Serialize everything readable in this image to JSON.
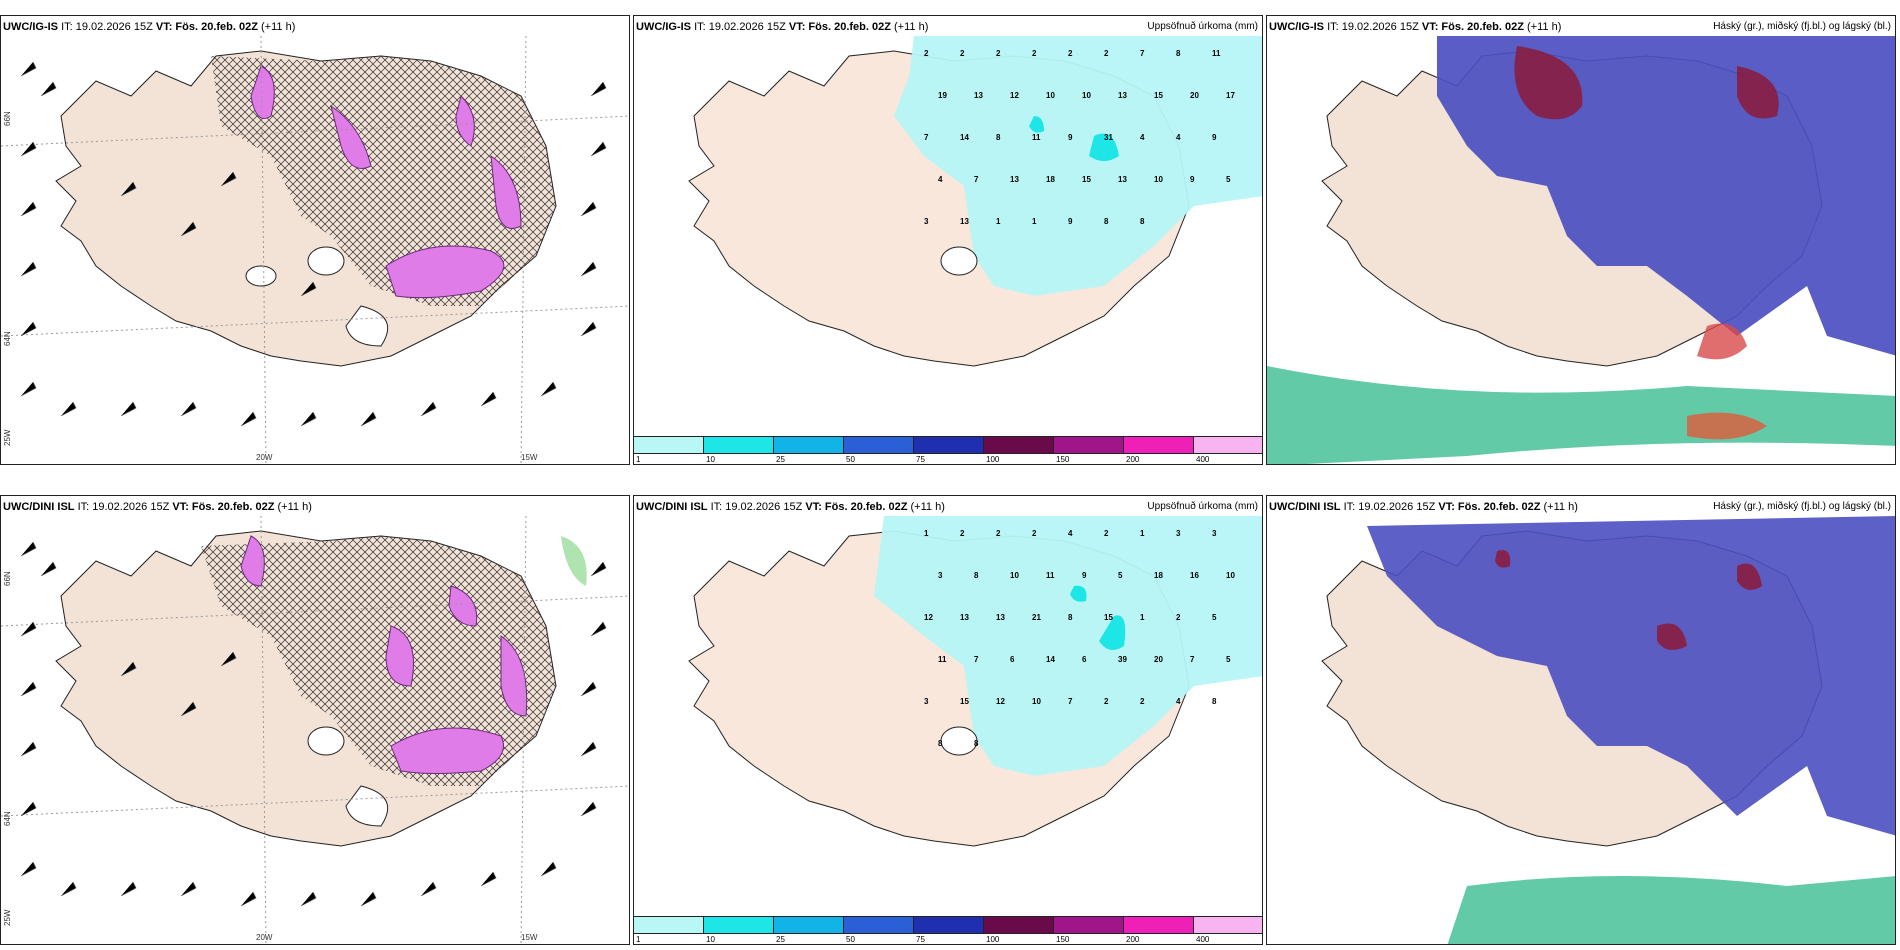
{
  "panels": [
    {
      "model": "UWC/IG-IS",
      "it": "IT: 19.02.2026 15Z",
      "vt": "VT: Fös. 20.feb. 02Z",
      "lead": "(+11 h)",
      "title": ""
    },
    {
      "model": "UWC/IG-IS",
      "it": "IT: 19.02.2026 15Z",
      "vt": "VT: Fös. 20.feb. 02Z",
      "lead": "(+11 h)",
      "title": "Uppsöfnuð úrkoma (mm)"
    },
    {
      "model": "UWC/IG-IS",
      "it": "IT: 19.02.2026 15Z",
      "vt": "VT: Fös. 20.feb. 02Z",
      "lead": "(+11 h)",
      "title": "Háský (gr.), miðský (fj.bl.) og lágský (bl.)"
    },
    {
      "model": "UWC/DINI ISL",
      "it": "IT: 19.02.2026 15Z",
      "vt": "VT: Fös. 20.feb. 02Z",
      "lead": "(+11 h)",
      "title": ""
    },
    {
      "model": "UWC/DINI ISL",
      "it": "IT: 19.02.2026 15Z",
      "vt": "VT: Fös. 20.feb. 02Z",
      "lead": "(+11 h)",
      "title": "Uppsöfnuð úrkoma (mm)"
    },
    {
      "model": "UWC/DINI ISL",
      "it": "IT: 19.02.2026 15Z",
      "vt": "VT: Fös. 20.feb. 02Z",
      "lead": "(+11 h)",
      "title": "Háský (gr.), miðský (fj.bl.) og lágský (bl.)"
    }
  ],
  "axes": {
    "lat66": "66N",
    "lat64": "64N",
    "lon20": "20W",
    "lon15": "15W",
    "lon25": "25W"
  },
  "colorbar": {
    "ticks": [
      "1",
      "10",
      "25",
      "50",
      "75",
      "100",
      "150",
      "200",
      "400"
    ],
    "colors": [
      "#b8f7f5",
      "#1ee6e6",
      "#12b4e8",
      "#2a5fd8",
      "#1f2fb0",
      "#6a0a4a",
      "#a0168a",
      "#ee20b8",
      "#f7b4f0"
    ]
  },
  "precip_top": [
    "2",
    "2",
    "2",
    "2",
    "2",
    "2",
    "7",
    "8",
    "11",
    "19",
    "13",
    "12",
    "10",
    "10",
    "13",
    "15",
    "20",
    "17",
    "7",
    "14",
    "8",
    "11",
    "9",
    "31",
    "4",
    "4",
    "9",
    "4",
    "7",
    "13",
    "18",
    "15",
    "13",
    "10",
    "9",
    "5",
    "3",
    "13",
    "1",
    "1",
    "9",
    "8",
    "8"
  ],
  "precip_bottom": [
    "1",
    "2",
    "2",
    "2",
    "4",
    "2",
    "1",
    "3",
    "3",
    "3",
    "8",
    "10",
    "11",
    "9",
    "5",
    "18",
    "16",
    "10",
    "12",
    "13",
    "13",
    "21",
    "8",
    "15",
    "1",
    "2",
    "5",
    "11",
    "7",
    "6",
    "14",
    "6",
    "39",
    "20",
    "7",
    "5",
    "3",
    "15",
    "12",
    "10",
    "7",
    "2",
    "2",
    "4",
    "8",
    "8",
    "8"
  ],
  "palette": {
    "land": "#f6e6d8",
    "coast": "#222222",
    "precip": "#b6f6f7",
    "hatch": "#333333",
    "snow": "#e07ce8",
    "cloud": "#4b4fc0",
    "cloudHigh": "#8b1a3a",
    "low": "#2eb88a"
  }
}
